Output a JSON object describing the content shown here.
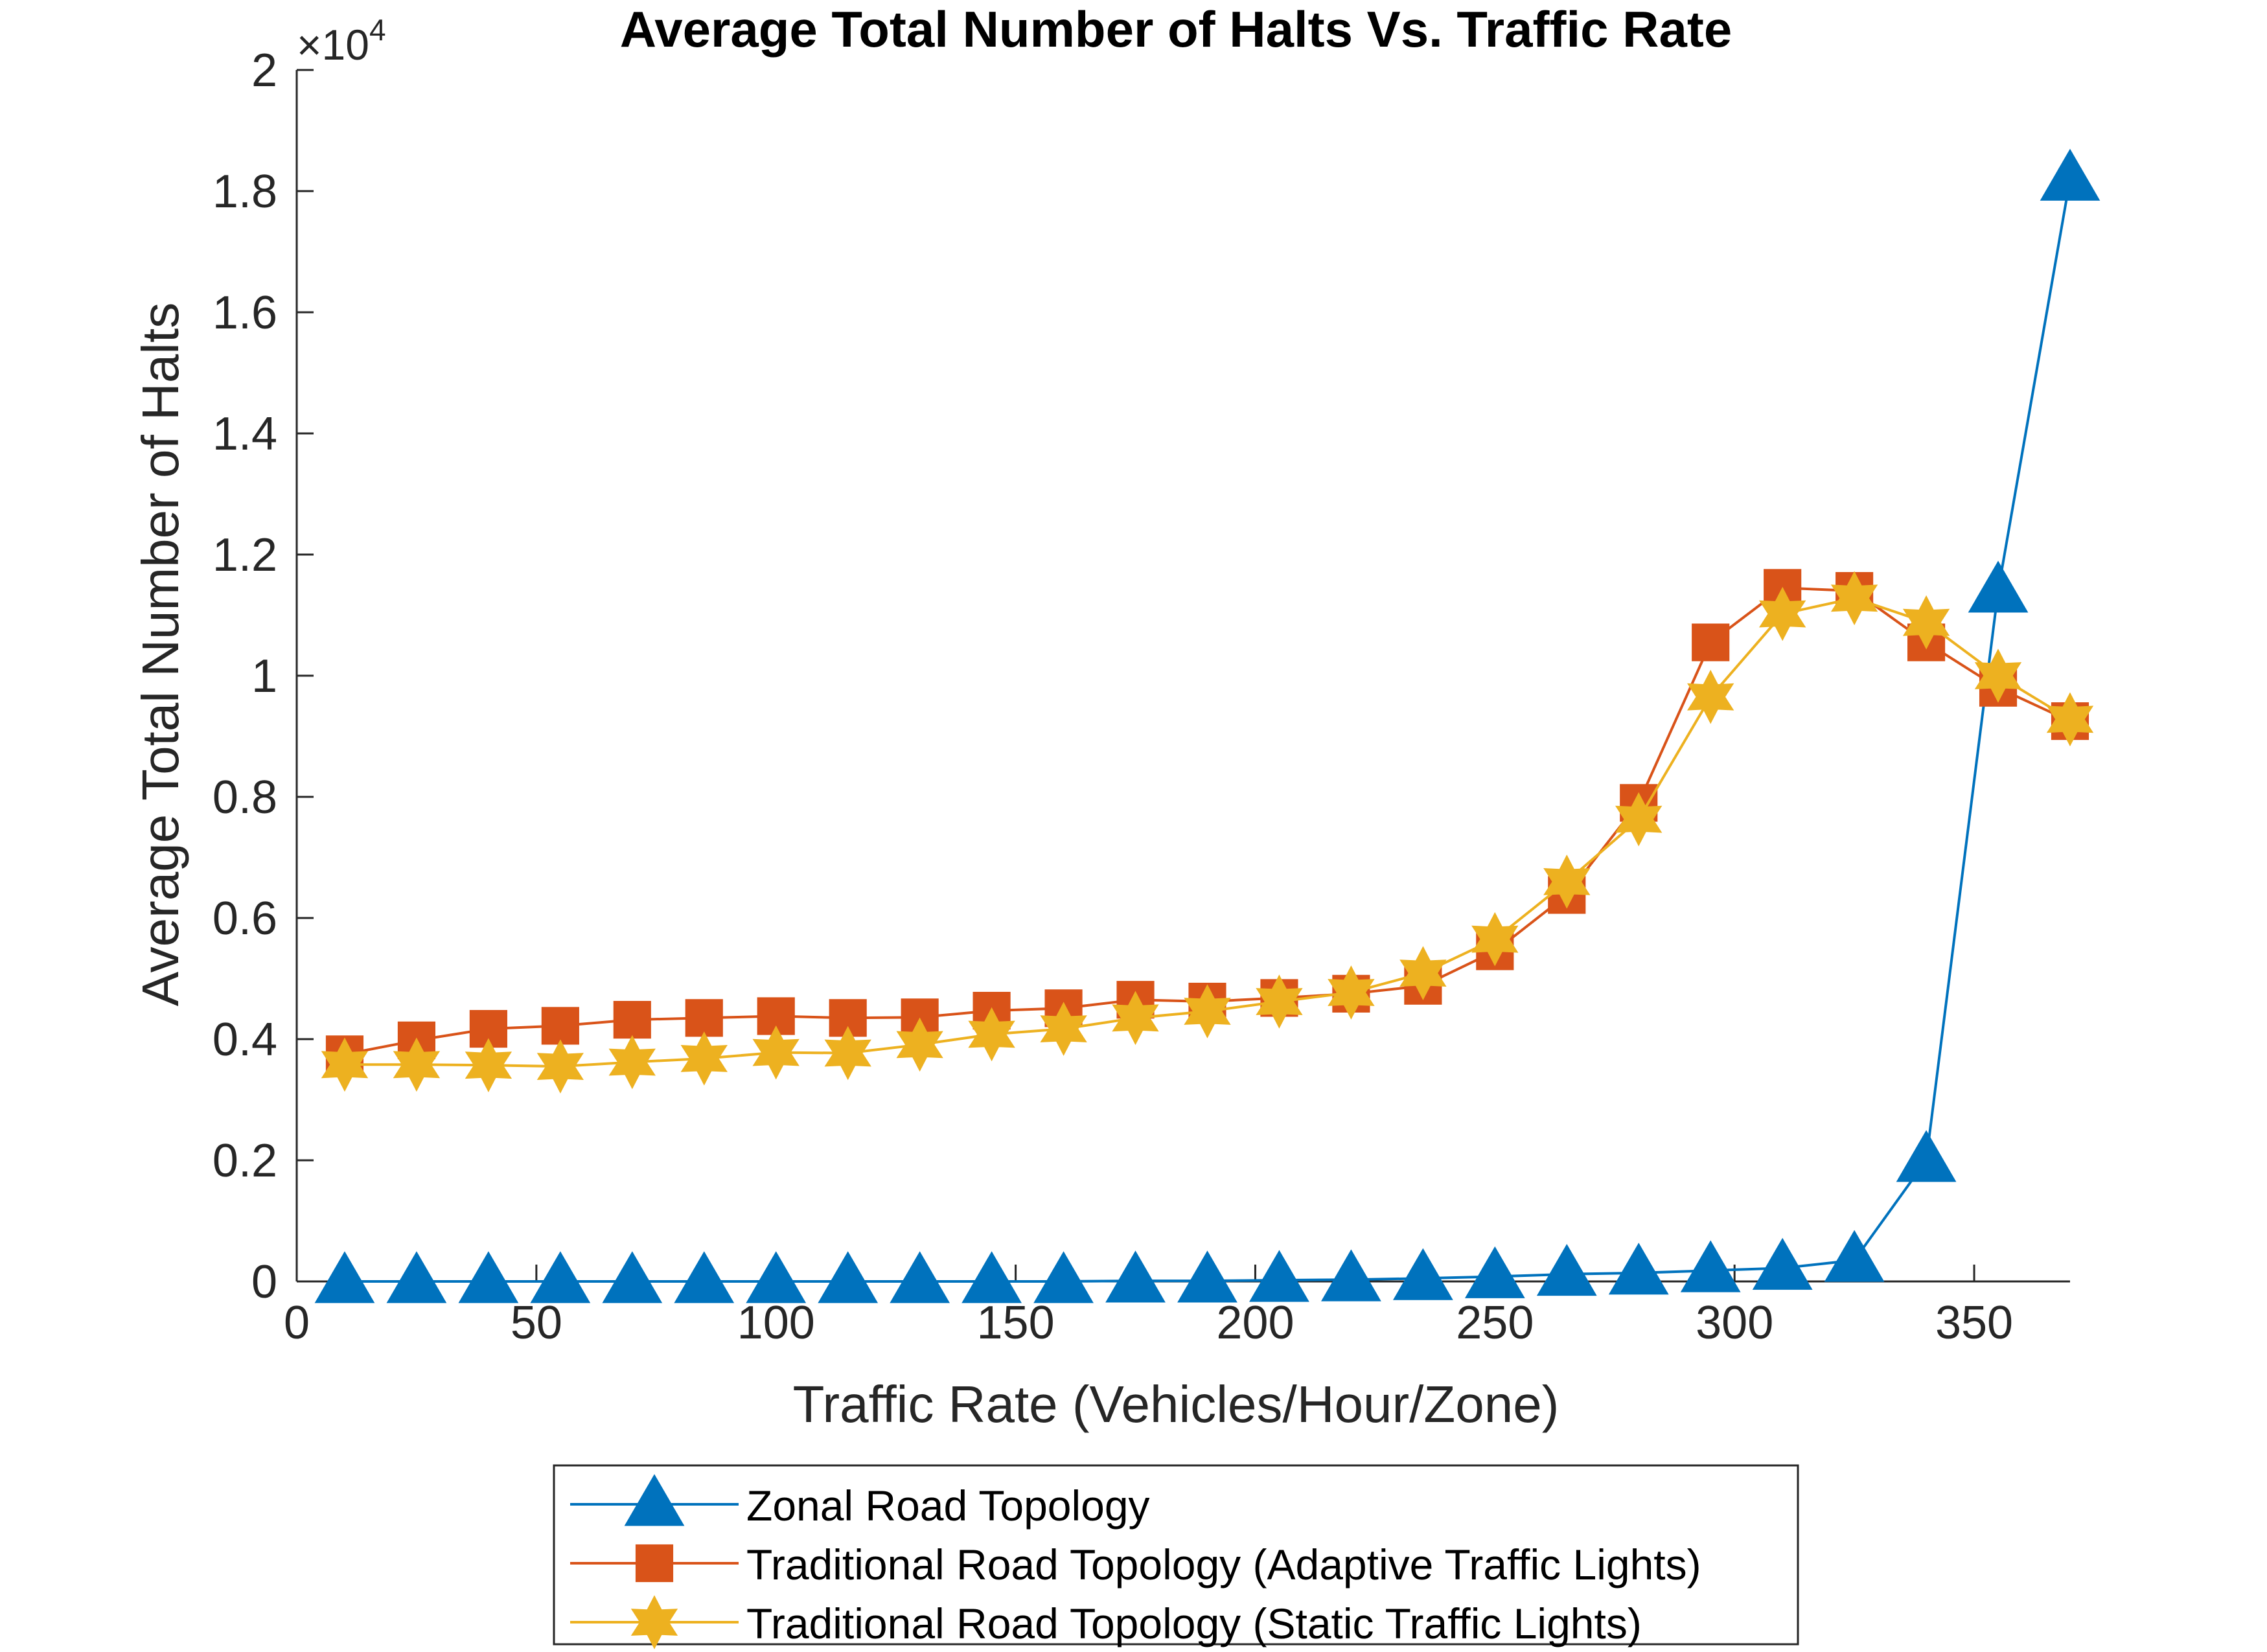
{
  "chart_data": {
    "type": "line",
    "title": "Average Total Number of Halts Vs. Traffic Rate",
    "xlabel": "Traffic Rate (Vehicles/Hour/Zone)",
    "ylabel": "Average Total Number of Halts",
    "xlim": [
      0,
      370
    ],
    "ylim": [
      0,
      20000
    ],
    "xticks": [
      0,
      50,
      100,
      150,
      200,
      250,
      300,
      350
    ],
    "yticks": [
      0,
      2000,
      4000,
      6000,
      8000,
      10000,
      12000,
      14000,
      16000,
      18000,
      20000
    ],
    "ytick_labels": [
      "0",
      "0.2",
      "0.4",
      "0.6",
      "0.8",
      "1",
      "1.2",
      "1.4",
      "1.6",
      "1.8",
      "2"
    ],
    "y_exponent_base": "×10",
    "y_exponent_power": "4",
    "legend_position": "below-axes",
    "x": [
      10,
      25,
      40,
      55,
      70,
      85,
      100,
      115,
      130,
      145,
      160,
      175,
      190,
      205,
      220,
      235,
      250,
      265,
      280,
      295,
      310,
      325,
      340,
      355,
      370
    ],
    "series": [
      {
        "name": "Zonal Road Topology",
        "color": "#0072BD",
        "marker": "triangle",
        "values": [
          0,
          0,
          0,
          0,
          0,
          0,
          0,
          0,
          0,
          0,
          0,
          10,
          10,
          20,
          30,
          50,
          80,
          120,
          140,
          180,
          220,
          350,
          2000,
          11400,
          18200
        ]
      },
      {
        "name": "Traditional Road Topology (Adaptive Traffic Lights)",
        "color": "#D95319",
        "marker": "square",
        "values": [
          3750,
          3980,
          4170,
          4220,
          4320,
          4350,
          4380,
          4350,
          4360,
          4470,
          4510,
          4650,
          4620,
          4680,
          4750,
          4880,
          5450,
          6380,
          7900,
          10550,
          11450,
          11400,
          10550,
          9800,
          9250
        ]
      },
      {
        "name": "Traditional Road Topology (Static Traffic Lights)",
        "color": "#EDB120",
        "marker": "hexagram",
        "values": [
          3580,
          3580,
          3570,
          3550,
          3620,
          3680,
          3780,
          3770,
          3910,
          4080,
          4170,
          4350,
          4460,
          4620,
          4770,
          5090,
          5650,
          6600,
          7630,
          9650,
          11020,
          11280,
          10880,
          10000,
          9280
        ]
      }
    ]
  }
}
